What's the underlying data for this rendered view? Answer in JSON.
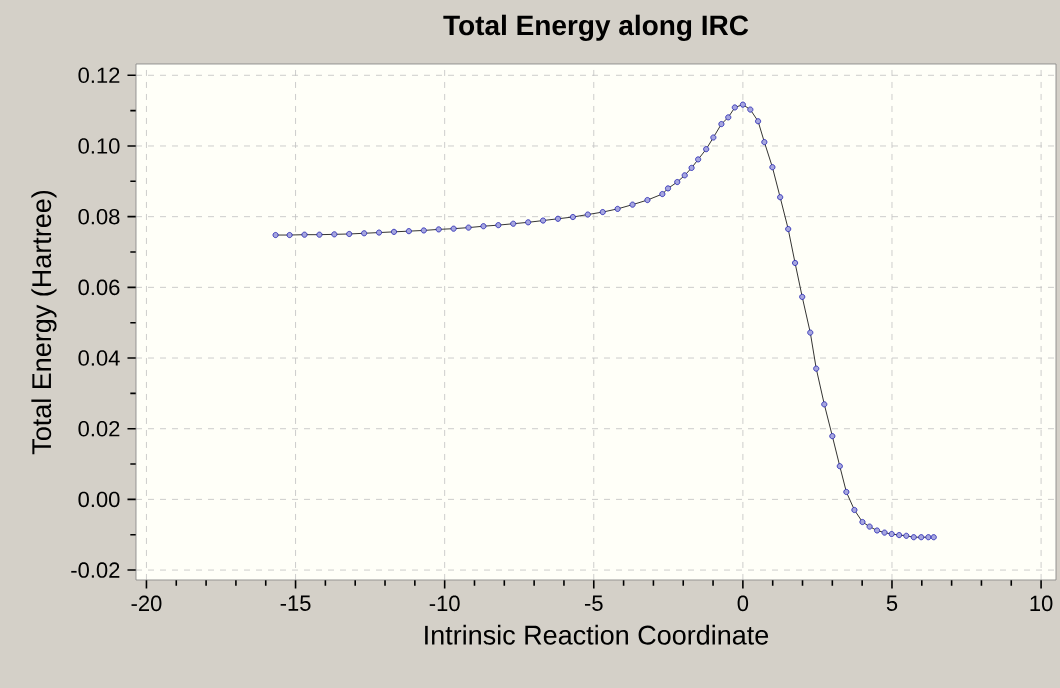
{
  "chart_data": {
    "type": "line",
    "title": "Total Energy along IRC",
    "xlabel": "Intrinsic Reaction Coordinate",
    "ylabel": "Total Energy (Hartree)",
    "series": [
      {
        "color": "#2020b0",
        "x": [
          -15.67,
          -15.2,
          -14.7,
          -14.2,
          -13.7,
          -13.2,
          -12.7,
          -12.2,
          -11.7,
          -11.2,
          -10.7,
          -10.2,
          -9.7,
          -9.2,
          -8.7,
          -8.2,
          -7.7,
          -7.2,
          -6.7,
          -6.2,
          -5.7,
          -5.2,
          -4.7,
          -4.2,
          -3.7,
          -3.2,
          -2.7,
          -2.51,
          -2.2,
          -1.95,
          -1.72,
          -1.5,
          -1.23,
          -0.99,
          -0.72,
          -0.49,
          -0.27,
          0,
          0.25,
          0.51,
          0.72,
          0.99,
          1.25,
          1.52,
          1.75,
          1.99,
          2.26,
          2.46,
          2.73,
          3.0,
          3.25,
          3.47,
          3.74,
          4.01,
          4.25,
          4.5,
          4.75,
          4.99,
          5.24,
          5.48,
          5.73,
          5.98,
          6.22,
          6.4
        ],
        "values": [
          0.0748,
          0.0748,
          0.0749,
          0.0749,
          0.075,
          0.0751,
          0.0753,
          0.0755,
          0.0757,
          0.0759,
          0.0761,
          0.0764,
          0.0766,
          0.0769,
          0.0773,
          0.0776,
          0.078,
          0.0784,
          0.0789,
          0.0794,
          0.0799,
          0.0806,
          0.0813,
          0.0822,
          0.0834,
          0.0847,
          0.0864,
          0.088,
          0.0898,
          0.0917,
          0.0938,
          0.0962,
          0.0991,
          0.1024,
          0.1062,
          0.1081,
          0.1109,
          0.1117,
          0.1103,
          0.107,
          0.1011,
          0.094,
          0.0855,
          0.0765,
          0.0669,
          0.0573,
          0.0472,
          0.037,
          0.0269,
          0.0179,
          0.0094,
          0.0021,
          -0.003,
          -0.0064,
          -0.0077,
          -0.0088,
          -0.0094,
          -0.0098,
          -0.0101,
          -0.0103,
          -0.0107,
          -0.0107,
          -0.0107,
          -0.0107
        ]
      }
    ],
    "xlim": [
      -20.35,
      10.5
    ],
    "ylim": [
      -0.0228,
      0.1232
    ],
    "xticks": [
      -20,
      -15,
      -10,
      -5,
      0,
      5,
      10
    ],
    "yticks": [
      {
        "value": -0.02,
        "label": "-0.02"
      },
      {
        "value": 0,
        "label": "0.00"
      },
      {
        "value": 0.02,
        "label": "0.02"
      },
      {
        "value": 0.04,
        "label": "0.04"
      },
      {
        "value": 0.06,
        "label": "0.06"
      },
      {
        "value": 0.08,
        "label": "0.08"
      },
      {
        "value": 0.1,
        "label": "0.10"
      },
      {
        "value": 0.12,
        "label": "0.12"
      }
    ],
    "grid": true,
    "marker": "circle",
    "line_style": "solid"
  }
}
